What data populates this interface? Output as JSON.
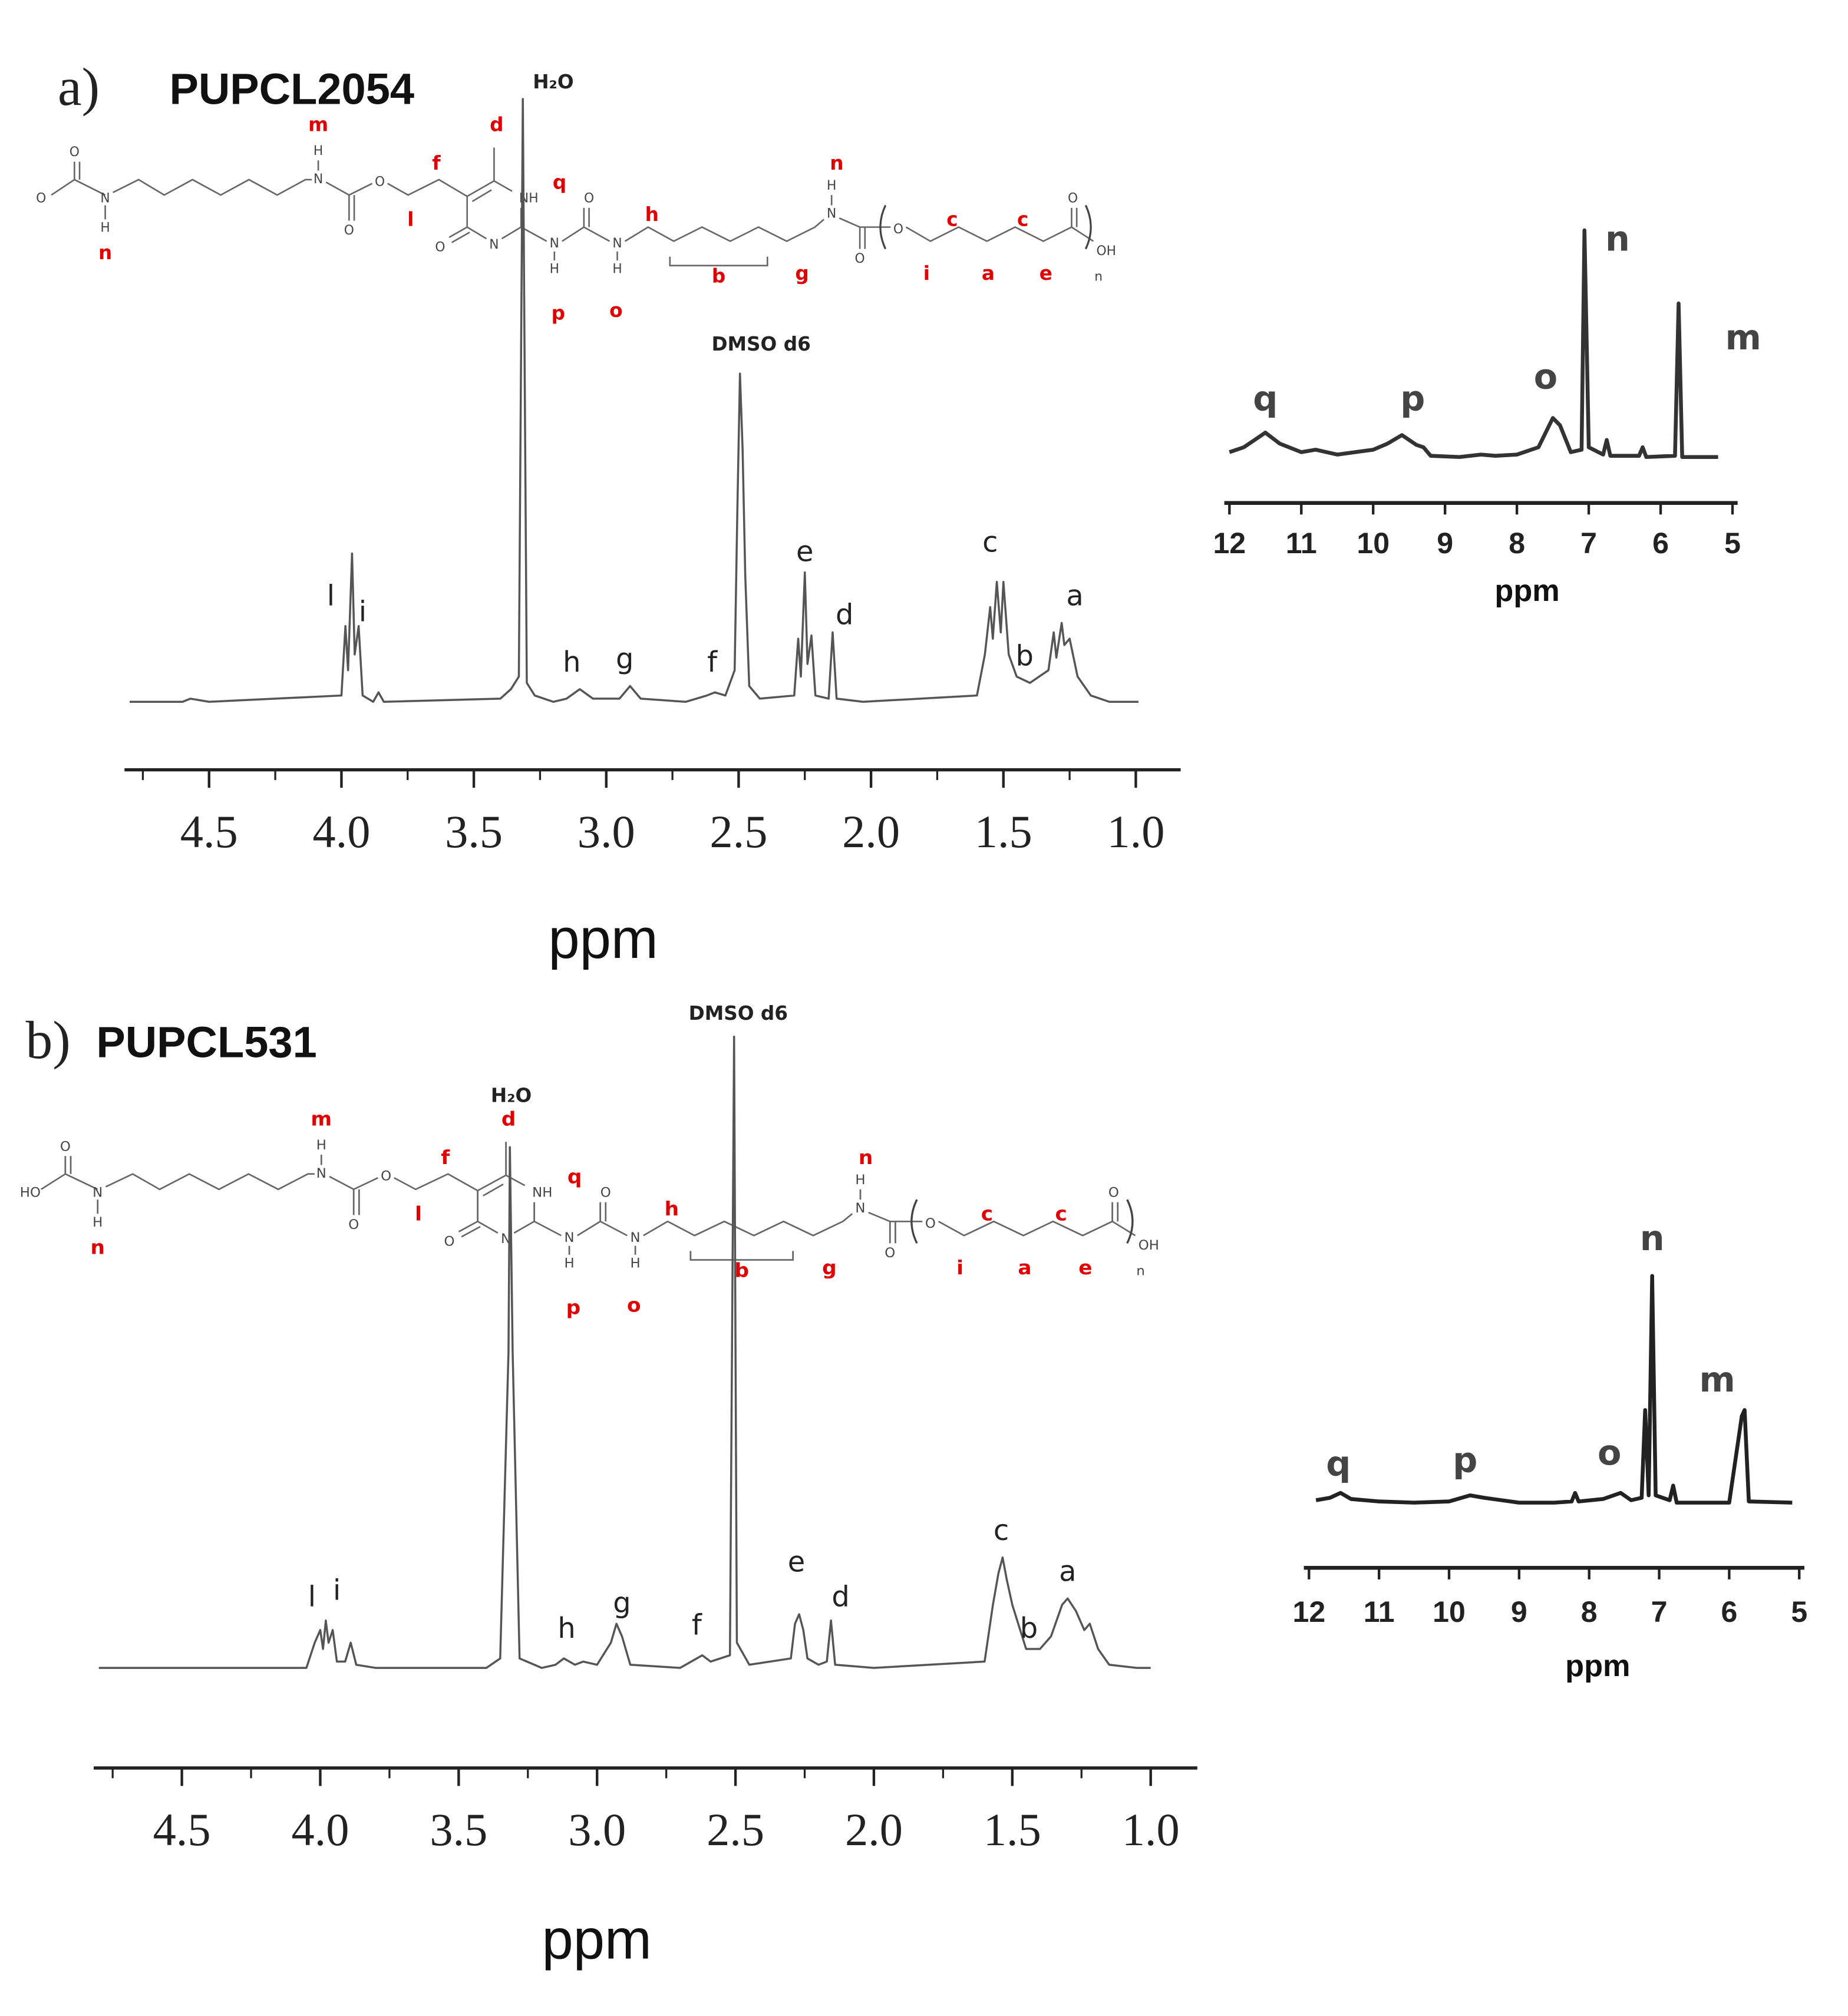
{
  "structures": [
    {
      "labels": [
        "m",
        "d",
        "f",
        "q",
        "l",
        "h",
        "b",
        "g",
        "p",
        "o",
        "n",
        "n",
        "c",
        "c",
        "i",
        "a",
        "e",
        "O",
        "O",
        "N",
        "H",
        "H",
        "N",
        "O",
        "O",
        "NH",
        "N",
        "O",
        "N",
        "H",
        "O",
        "N",
        "H",
        "H",
        "N",
        "O",
        "O",
        "O",
        "OH",
        "n"
      ]
    },
    {
      "labels": [
        "m",
        "d",
        "f",
        "q",
        "l",
        "h",
        "b",
        "g",
        "p",
        "o",
        "n",
        "n",
        "c",
        "c",
        "i",
        "a",
        "e",
        "HO",
        "O",
        "N",
        "H",
        "H",
        "N",
        "O",
        "O",
        "NH",
        "N",
        "O",
        "N",
        "H",
        "O",
        "N",
        "H",
        "H",
        "N",
        "O",
        "O",
        "O",
        "OH",
        "n"
      ]
    }
  ],
  "chart_data": [
    {
      "type": "line",
      "panel_label": "a)",
      "title": "PUPCL2054",
      "xlabel": "ppm",
      "color": "#555555",
      "xlim": [
        4.8,
        0.85
      ],
      "ylim": [
        0,
        200
      ],
      "xticks": [
        4.5,
        {
          "value": 4,
          "label": "4.0"
        },
        3.5,
        {
          "value": 3,
          "label": "3.0"
        },
        2.5,
        {
          "value": 2,
          "label": "2.0"
        },
        1.5,
        {
          "value": 1,
          "label": "1.0"
        }
      ],
      "xminorticks": [
        4.75,
        4.25,
        3.75,
        3.25,
        2.75,
        2.25,
        1.75,
        1.25
      ],
      "x": [
        4.8,
        4.6,
        4.57,
        4.5,
        4.0,
        3.985,
        3.975,
        3.96,
        3.95,
        3.935,
        3.92,
        3.88,
        3.86,
        3.84,
        3.4,
        3.36,
        3.33,
        3.315,
        3.3,
        3.27,
        3.2,
        3.15,
        3.1,
        3.05,
        2.95,
        2.91,
        2.87,
        2.7,
        2.62,
        2.59,
        2.55,
        2.515,
        2.505,
        2.495,
        2.485,
        2.475,
        2.46,
        2.42,
        2.29,
        2.275,
        2.265,
        2.25,
        2.24,
        2.225,
        2.21,
        2.16,
        2.145,
        2.13,
        2.03,
        1.6,
        1.57,
        1.55,
        1.54,
        1.525,
        1.51,
        1.5,
        1.48,
        1.45,
        1.4,
        1.33,
        1.31,
        1.3,
        1.28,
        1.27,
        1.25,
        1.22,
        1.17,
        1.1,
        0.99
      ],
      "values": [
        0,
        0,
        1,
        0,
        2,
        24,
        10,
        47,
        15,
        24,
        2,
        0,
        3,
        0,
        1,
        4,
        8,
        191,
        6,
        2,
        0,
        1,
        4,
        1,
        1,
        5,
        1,
        0,
        2,
        3,
        2,
        10,
        60,
        104,
        80,
        40,
        5,
        1,
        2,
        20,
        8,
        41,
        12,
        21,
        2,
        1,
        22,
        1,
        0,
        2,
        15,
        30,
        20,
        38,
        22,
        38,
        15,
        8,
        6,
        10,
        22,
        14,
        25,
        18,
        20,
        8,
        2,
        0,
        0
      ],
      "annotations": [
        {
          "text": "l",
          "x": 4.04,
          "y": 33
        },
        {
          "text": "i",
          "x": 3.92,
          "y": 28
        },
        {
          "text": "h",
          "x": 3.13,
          "y": 12
        },
        {
          "text": "g",
          "x": 2.93,
          "y": 13
        },
        {
          "text": "f",
          "x": 2.6,
          "y": 12
        },
        {
          "text": "e",
          "x": 2.25,
          "y": 47
        },
        {
          "text": "d",
          "x": 2.1,
          "y": 27
        },
        {
          "text": "c",
          "x": 1.55,
          "y": 50
        },
        {
          "text": "b",
          "x": 1.42,
          "y": 14
        },
        {
          "text": "a",
          "x": 1.23,
          "y": 33
        },
        {
          "text": "H₂O",
          "x": 3.2,
          "y": 196
        },
        {
          "text": "DMSO d6",
          "x": 2.415,
          "y": 113
        }
      ]
    },
    {
      "type": "line",
      "xlabel": "ppm",
      "color": "#333333",
      "xlim": [
        12,
        5
      ],
      "ylim": [
        0,
        200
      ],
      "xticks": [
        12,
        11,
        10,
        9,
        8,
        7,
        6,
        5
      ],
      "x": [
        12.0,
        11.8,
        11.6,
        11.5,
        11.3,
        11.0,
        10.8,
        10.5,
        10.0,
        9.8,
        9.6,
        9.4,
        9.3,
        9.2,
        8.8,
        8.5,
        8.3,
        8.0,
        7.7,
        7.5,
        7.4,
        7.25,
        7.1,
        7.06,
        7.0,
        6.8,
        6.75,
        6.7,
        6.3,
        6.25,
        6.2,
        5.8,
        5.75,
        5.7,
        5.2
      ],
      "values": [
        8,
        12,
        20,
        24,
        15,
        8,
        10,
        6,
        10,
        15,
        22,
        14,
        12,
        5,
        4,
        6,
        5,
        6,
        12,
        36,
        30,
        8,
        10,
        190,
        12,
        6,
        18,
        5,
        5,
        12,
        4,
        5,
        130,
        4,
        4
      ],
      "annotations": [
        {
          "text": "q",
          "x": 11.5,
          "y": 50
        },
        {
          "text": "p",
          "x": 9.45,
          "y": 50
        },
        {
          "text": "o",
          "x": 7.6,
          "y": 68
        },
        {
          "text": "n",
          "x": 6.6,
          "y": 181
        },
        {
          "text": "m",
          "x": 4.85,
          "y": 100
        }
      ]
    },
    {
      "type": "line",
      "panel_label": "b)",
      "title": "PUPCL531",
      "xlabel": "ppm",
      "color": "#555555",
      "xlim": [
        4.8,
        0.85
      ],
      "ylim": [
        0,
        200
      ],
      "xticks": [
        4.5,
        {
          "value": 4,
          "label": "4.0"
        },
        3.5,
        {
          "value": 3,
          "label": "3.0"
        },
        2.5,
        {
          "value": 2,
          "label": "2.0"
        },
        1.5,
        {
          "value": 1,
          "label": "1.0"
        }
      ],
      "xminorticks": [
        4.75,
        4.25,
        3.75,
        3.25,
        2.75,
        2.25,
        1.75,
        1.25
      ],
      "x": [
        4.8,
        4.05,
        4.02,
        4.0,
        3.99,
        3.98,
        3.97,
        3.955,
        3.94,
        3.91,
        3.89,
        3.87,
        3.8,
        3.4,
        3.35,
        3.32,
        3.315,
        3.305,
        3.28,
        3.2,
        3.15,
        3.12,
        3.08,
        3.05,
        3.0,
        2.95,
        2.93,
        2.91,
        2.88,
        2.7,
        2.66,
        2.62,
        2.59,
        2.52,
        2.505,
        2.495,
        2.45,
        2.3,
        2.285,
        2.27,
        2.255,
        2.24,
        2.2,
        2.17,
        2.155,
        2.14,
        2.0,
        1.6,
        1.57,
        1.55,
        1.535,
        1.52,
        1.5,
        1.45,
        1.4,
        1.36,
        1.32,
        1.3,
        1.27,
        1.24,
        1.22,
        1.19,
        1.15,
        1.05,
        1.0
      ],
      "values": [
        0,
        0,
        8,
        12,
        6,
        15,
        8,
        12,
        2,
        2,
        8,
        1,
        0,
        0,
        3,
        100,
        165,
        100,
        3,
        0,
        1,
        3,
        1,
        2,
        1,
        8,
        14,
        10,
        1,
        0,
        2,
        4,
        2,
        4,
        200,
        8,
        1,
        3,
        14,
        17,
        12,
        3,
        1,
        2,
        15,
        1,
        0,
        2,
        20,
        30,
        35,
        28,
        20,
        6,
        6,
        10,
        20,
        22,
        18,
        12,
        14,
        6,
        1,
        0,
        0
      ],
      "annotations": [
        {
          "text": "l",
          "x": 4.03,
          "y": 22
        },
        {
          "text": "i",
          "x": 3.94,
          "y": 24
        },
        {
          "text": "h",
          "x": 3.11,
          "y": 12
        },
        {
          "text": "g",
          "x": 2.91,
          "y": 20
        },
        {
          "text": "f",
          "x": 2.64,
          "y": 13
        },
        {
          "text": "e",
          "x": 2.28,
          "y": 33
        },
        {
          "text": "d",
          "x": 2.12,
          "y": 22
        },
        {
          "text": "c",
          "x": 1.54,
          "y": 43
        },
        {
          "text": "b",
          "x": 1.44,
          "y": 12
        },
        {
          "text": "a",
          "x": 1.3,
          "y": 30
        },
        {
          "text": "H₂O",
          "x": 3.31,
          "y": 181
        },
        {
          "text": "DMSO d6",
          "x": 2.49,
          "y": 207
        }
      ]
    },
    {
      "type": "line",
      "xlabel": "ppm",
      "color": "#222222",
      "xlim": [
        12,
        5
      ],
      "ylim": [
        0,
        200
      ],
      "xticks": [
        12,
        11,
        10,
        9,
        8,
        7,
        6,
        5
      ],
      "x": [
        11.9,
        11.7,
        11.55,
        11.4,
        11.0,
        10.5,
        10.0,
        9.7,
        9.5,
        9.0,
        8.5,
        8.25,
        8.2,
        8.15,
        7.8,
        7.55,
        7.4,
        7.25,
        7.2,
        7.15,
        7.1,
        7.05,
        6.85,
        6.8,
        6.75,
        6.0,
        5.82,
        5.78,
        5.72,
        5.1
      ],
      "values": [
        6,
        8,
        12,
        7,
        5,
        4,
        5,
        10,
        8,
        4,
        4,
        5,
        12,
        5,
        7,
        12,
        6,
        8,
        80,
        10,
        190,
        10,
        6,
        18,
        4,
        4,
        75,
        80,
        5,
        4
      ],
      "annotations": [
        {
          "text": "q",
          "x": 11.58,
          "y": 34
        },
        {
          "text": "p",
          "x": 9.77,
          "y": 37
        },
        {
          "text": "o",
          "x": 7.71,
          "y": 43
        },
        {
          "text": "n",
          "x": 7.1,
          "y": 219
        },
        {
          "text": "m",
          "x": 6.17,
          "y": 103
        }
      ]
    }
  ]
}
